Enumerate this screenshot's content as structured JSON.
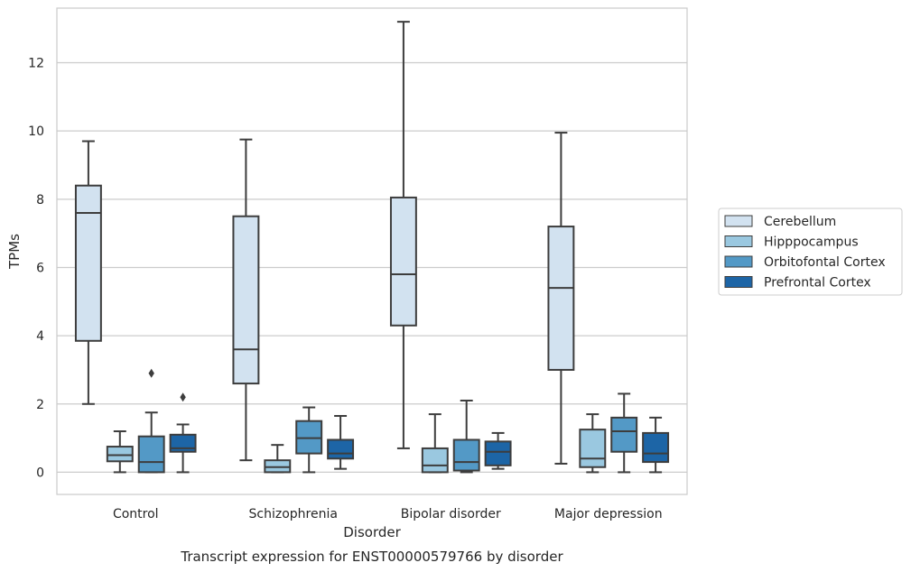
{
  "chart_data": {
    "type": "boxplot",
    "xlabel": "Disorder",
    "ylabel": "TPMs",
    "caption": "Transcript expression for ENST00000579766 by disorder",
    "ylim": [
      -0.65,
      13.6
    ],
    "yticks": [
      0,
      2,
      4,
      6,
      8,
      10,
      12
    ],
    "grid": "horizontal",
    "legend_position": "right",
    "categories": [
      "Control",
      "Schizophrenia",
      "Bipolar disorder",
      "Major depression"
    ],
    "series": [
      {
        "name": "Cerebellum",
        "color": "#d2e2f0",
        "boxes": [
          {
            "whislo": 2.0,
            "q1": 3.85,
            "med": 7.6,
            "q3": 8.4,
            "whishi": 9.7,
            "fliers": []
          },
          {
            "whislo": 0.35,
            "q1": 2.6,
            "med": 3.6,
            "q3": 7.5,
            "whishi": 9.75,
            "fliers": []
          },
          {
            "whislo": 0.7,
            "q1": 4.3,
            "med": 5.8,
            "q3": 8.05,
            "whishi": 13.2,
            "fliers": []
          },
          {
            "whislo": 0.25,
            "q1": 3.0,
            "med": 5.4,
            "q3": 7.2,
            "whishi": 9.95,
            "fliers": []
          }
        ]
      },
      {
        "name": "Hipppocampus",
        "color": "#9ac8e0",
        "boxes": [
          {
            "whislo": 0.0,
            "q1": 0.32,
            "med": 0.5,
            "q3": 0.75,
            "whishi": 1.2,
            "fliers": []
          },
          {
            "whislo": 0.0,
            "q1": 0.0,
            "med": 0.15,
            "q3": 0.35,
            "whishi": 0.8,
            "fliers": []
          },
          {
            "whislo": 0.0,
            "q1": 0.0,
            "med": 0.2,
            "q3": 0.7,
            "whishi": 1.7,
            "fliers": []
          },
          {
            "whislo": 0.0,
            "q1": 0.15,
            "med": 0.4,
            "q3": 1.25,
            "whishi": 1.7,
            "fliers": []
          }
        ]
      },
      {
        "name": "Orbitofontal Cortex",
        "color": "#5399c6",
        "boxes": [
          {
            "whislo": 0.0,
            "q1": 0.0,
            "med": 0.3,
            "q3": 1.05,
            "whishi": 1.75,
            "fliers": [
              2.9
            ]
          },
          {
            "whislo": 0.0,
            "q1": 0.55,
            "med": 1.0,
            "q3": 1.5,
            "whishi": 1.9,
            "fliers": []
          },
          {
            "whislo": 0.0,
            "q1": 0.05,
            "med": 0.3,
            "q3": 0.95,
            "whishi": 2.1,
            "fliers": []
          },
          {
            "whislo": 0.0,
            "q1": 0.6,
            "med": 1.2,
            "q3": 1.6,
            "whishi": 2.3,
            "fliers": []
          }
        ]
      },
      {
        "name": "Prefrontal Cortex",
        "color": "#1d65a6",
        "boxes": [
          {
            "whislo": 0.0,
            "q1": 0.6,
            "med": 0.7,
            "q3": 1.1,
            "whishi": 1.4,
            "fliers": [
              2.2
            ]
          },
          {
            "whislo": 0.1,
            "q1": 0.4,
            "med": 0.55,
            "q3": 0.95,
            "whishi": 1.65,
            "fliers": []
          },
          {
            "whislo": 0.1,
            "q1": 0.2,
            "med": 0.6,
            "q3": 0.9,
            "whishi": 1.15,
            "fliers": []
          },
          {
            "whislo": 0.0,
            "q1": 0.3,
            "med": 0.55,
            "q3": 1.15,
            "whishi": 1.6,
            "fliers": []
          }
        ]
      }
    ]
  }
}
